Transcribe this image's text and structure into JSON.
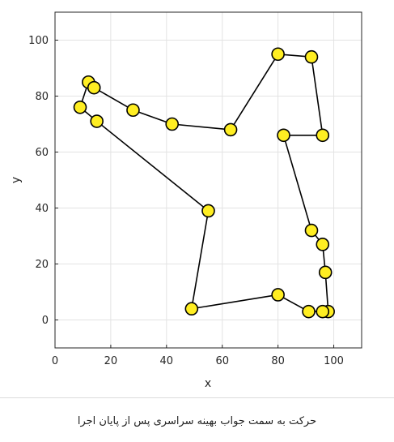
{
  "caption": "حرکت به سمت جواب بهینه سراسری پس از پایان اجرا",
  "colors": {
    "marker_fill": "#ffee22",
    "marker_edge": "#000000",
    "line": "#000000",
    "grid": "#e3e3e3"
  },
  "chart_data": {
    "type": "line",
    "xlabel": "x",
    "ylabel": "y",
    "xlim": [
      0,
      110
    ],
    "ylim": [
      -10,
      110
    ],
    "xticks": [
      0,
      20,
      40,
      60,
      80,
      100
    ],
    "yticks": [
      0,
      20,
      40,
      60,
      80,
      100
    ],
    "grid": true,
    "closed_route": true,
    "points": [
      {
        "x": 12,
        "y": 85
      },
      {
        "x": 14,
        "y": 83
      },
      {
        "x": 28,
        "y": 75
      },
      {
        "x": 42,
        "y": 70
      },
      {
        "x": 63,
        "y": 68
      },
      {
        "x": 80,
        "y": 95
      },
      {
        "x": 92,
        "y": 94
      },
      {
        "x": 96,
        "y": 66
      },
      {
        "x": 82,
        "y": 66
      },
      {
        "x": 92,
        "y": 32
      },
      {
        "x": 96,
        "y": 27
      },
      {
        "x": 97,
        "y": 17
      },
      {
        "x": 98,
        "y": 3
      },
      {
        "x": 96,
        "y": 3
      },
      {
        "x": 91,
        "y": 3
      },
      {
        "x": 80,
        "y": 9
      },
      {
        "x": 49,
        "y": 4
      },
      {
        "x": 55,
        "y": 39
      },
      {
        "x": 15,
        "y": 71
      },
      {
        "x": 9,
        "y": 76
      }
    ]
  }
}
